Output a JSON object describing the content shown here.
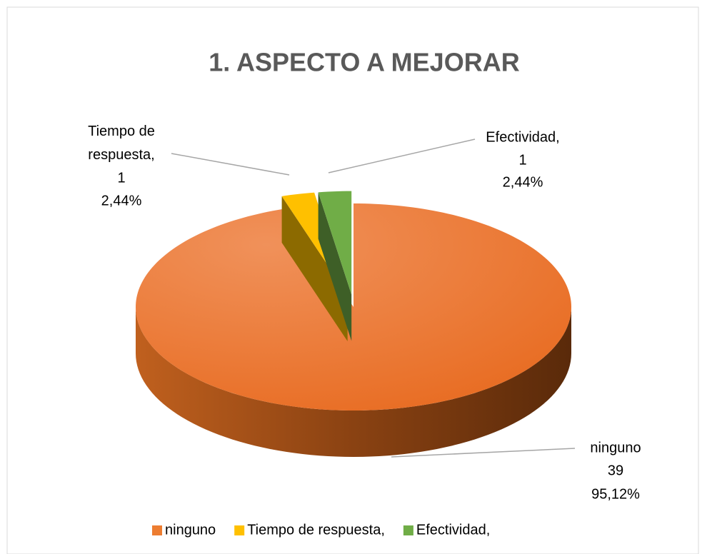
{
  "chart_data": {
    "type": "pie",
    "title": "1. ASPECTO A MEJORAR",
    "categories": [
      "ninguno",
      "Tiempo de respuesta,",
      "Efectividad,"
    ],
    "values": [
      39,
      1,
      1
    ],
    "percentages": [
      95.12,
      2.44,
      2.44
    ],
    "percentage_labels": [
      "95,12%",
      "2,44%",
      "2,44%"
    ],
    "colors": [
      "#ED7D31",
      "#FFC000",
      "#70AD47"
    ],
    "exploded": [
      false,
      true,
      true
    ],
    "legend": "bottom"
  }
}
